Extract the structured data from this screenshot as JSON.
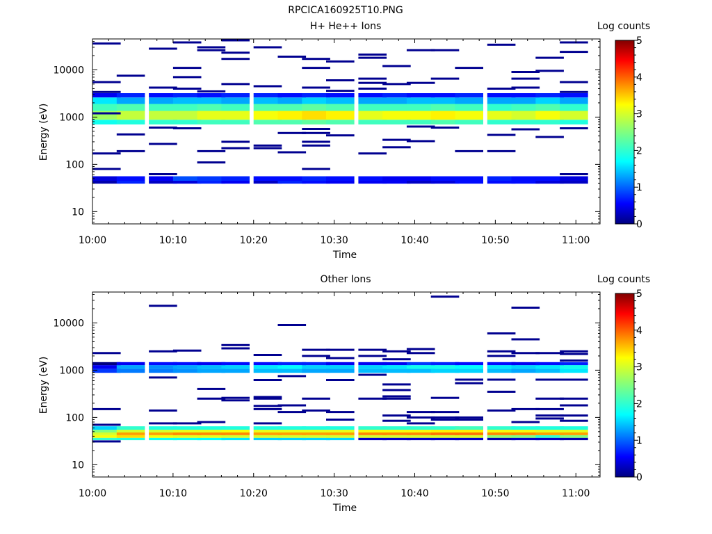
{
  "figure_title": "RPCICA160925T10.PNG",
  "chart_data": [
    {
      "type": "heatmap",
      "title": "H+ He++ Ions",
      "xlabel": "Time",
      "ylabel": "Energy (eV)",
      "x_ticks": [
        "10:00",
        "10:10",
        "10:20",
        "10:30",
        "10:40",
        "10:50",
        "11:00"
      ],
      "y_ticks": [
        "10",
        "100",
        "1000",
        "10000"
      ],
      "y_scale": "log",
      "xlim": [
        "10:00",
        "11:03"
      ],
      "ylim": [
        5.5,
        45000
      ],
      "colorbar": {
        "label": "Log counts",
        "ticks": [
          "0",
          "1",
          "2",
          "3",
          "4",
          "5"
        ],
        "range": [
          0,
          5
        ]
      },
      "time_bins": [
        "10:00",
        "10:03",
        "10:07",
        "10:10",
        "10:13",
        "10:16",
        "10:20",
        "10:23",
        "10:26",
        "10:29",
        "10:33",
        "10:36",
        "10:39",
        "10:42",
        "10:45",
        "10:49",
        "10:52",
        "10:55",
        "10:58"
      ],
      "bands": [
        {
          "e_low": 700,
          "e_high": 880,
          "values": [
            1.8,
            1.9,
            2.0,
            2.0,
            2.1,
            2.1,
            2.2,
            2.2,
            2.3,
            2.2,
            2.1,
            2.1,
            2.1,
            2.2,
            2.1,
            2.0,
            2.0,
            2.0,
            1.9
          ]
        },
        {
          "e_low": 880,
          "e_high": 1350,
          "values": [
            2.7,
            2.9,
            2.9,
            2.9,
            3.1,
            3.1,
            3.2,
            3.3,
            3.4,
            3.3,
            3.1,
            3.2,
            3.2,
            3.3,
            3.2,
            3.1,
            3.0,
            3.2,
            3.0
          ]
        },
        {
          "e_low": 1350,
          "e_high": 1900,
          "values": [
            2.1,
            2.2,
            2.1,
            2.1,
            2.2,
            2.1,
            2.2,
            2.2,
            2.3,
            2.2,
            2.1,
            2.1,
            2.1,
            2.2,
            2.1,
            2.0,
            2.1,
            2.2,
            2.0
          ]
        },
        {
          "e_low": 1900,
          "e_high": 2600,
          "values": [
            1.6,
            1.3,
            1.3,
            1.4,
            1.4,
            1.3,
            1.4,
            1.3,
            1.5,
            1.4,
            1.3,
            1.3,
            1.4,
            1.4,
            1.3,
            1.3,
            1.3,
            1.5,
            1.3
          ]
        },
        {
          "e_low": 2600,
          "e_high": 3200,
          "values": [
            0.5,
            0.7,
            0.6,
            0.7,
            0.6,
            0.7,
            0.7,
            0.6,
            0.7,
            0.6,
            0.6,
            0.7,
            0.6,
            0.6,
            0.7,
            0.6,
            0.6,
            0.7,
            0.6
          ]
        },
        {
          "e_low": 39,
          "e_high": 45,
          "values": [
            0.2,
            0.7,
            0.3,
            0.4,
            0.7,
            0.5,
            0.3,
            0.7,
            0.6,
            0.5,
            0.5,
            0.5,
            0.3,
            0.4,
            0.6,
            0.6,
            0.6,
            0.4,
            0.3
          ]
        },
        {
          "e_low": 45,
          "e_high": 56,
          "values": [
            0.4,
            0.6,
            0.5,
            0.9,
            0.8,
            0.7,
            0.6,
            0.6,
            0.7,
            0.6,
            0.6,
            0.5,
            0.5,
            0.6,
            0.6,
            0.7,
            0.6,
            0.6,
            0.4
          ]
        }
      ],
      "sparse_counts": [
        {
          "t": 0,
          "e": 36000
        },
        {
          "t": 0,
          "e": 5500
        },
        {
          "t": 0,
          "e": 3400
        },
        {
          "t": 0,
          "e": 1200
        },
        {
          "t": 0,
          "e": 170
        },
        {
          "t": 0,
          "e": 80
        },
        {
          "t": 1,
          "e": 7500
        },
        {
          "t": 1,
          "e": 430
        },
        {
          "t": 1,
          "e": 190
        },
        {
          "t": 2,
          "e": 28000
        },
        {
          "t": 2,
          "e": 4200
        },
        {
          "t": 2,
          "e": 600
        },
        {
          "t": 2,
          "e": 270
        },
        {
          "t": 2,
          "e": 62
        },
        {
          "t": 3,
          "e": 38000
        },
        {
          "t": 3,
          "e": 11000
        },
        {
          "t": 3,
          "e": 7000
        },
        {
          "t": 3,
          "e": 4000
        },
        {
          "t": 3,
          "e": 580
        },
        {
          "t": 4,
          "e": 30000
        },
        {
          "t": 4,
          "e": 26000
        },
        {
          "t": 4,
          "e": 3500
        },
        {
          "t": 4,
          "e": 190
        },
        {
          "t": 4,
          "e": 110
        },
        {
          "t": 5,
          "e": 42000
        },
        {
          "t": 5,
          "e": 23000
        },
        {
          "t": 5,
          "e": 17000
        },
        {
          "t": 5,
          "e": 5000
        },
        {
          "t": 5,
          "e": 300
        },
        {
          "t": 5,
          "e": 220
        },
        {
          "t": 6,
          "e": 30000
        },
        {
          "t": 6,
          "e": 4500
        },
        {
          "t": 6,
          "e": 250
        },
        {
          "t": 6,
          "e": 220
        },
        {
          "t": 7,
          "e": 19000
        },
        {
          "t": 7,
          "e": 460
        },
        {
          "t": 7,
          "e": 180
        },
        {
          "t": 8,
          "e": 17000
        },
        {
          "t": 8,
          "e": 11000
        },
        {
          "t": 8,
          "e": 4200
        },
        {
          "t": 8,
          "e": 560
        },
        {
          "t": 8,
          "e": 460
        },
        {
          "t": 8,
          "e": 300
        },
        {
          "t": 8,
          "e": 250
        },
        {
          "t": 8,
          "e": 80
        },
        {
          "t": 9,
          "e": 15000
        },
        {
          "t": 9,
          "e": 6000
        },
        {
          "t": 9,
          "e": 3600
        },
        {
          "t": 9,
          "e": 410
        },
        {
          "t": 10,
          "e": 21000
        },
        {
          "t": 10,
          "e": 18000
        },
        {
          "t": 10,
          "e": 6500
        },
        {
          "t": 10,
          "e": 5300
        },
        {
          "t": 10,
          "e": 4000
        },
        {
          "t": 10,
          "e": 170
        },
        {
          "t": 11,
          "e": 12000
        },
        {
          "t": 11,
          "e": 5000
        },
        {
          "t": 11,
          "e": 330
        },
        {
          "t": 11,
          "e": 230
        },
        {
          "t": 12,
          "e": 26000
        },
        {
          "t": 12,
          "e": 5300
        },
        {
          "t": 12,
          "e": 630
        },
        {
          "t": 12,
          "e": 310
        },
        {
          "t": 13,
          "e": 26000
        },
        {
          "t": 13,
          "e": 6500
        },
        {
          "t": 13,
          "e": 600
        },
        {
          "t": 14,
          "e": 11000
        },
        {
          "t": 14,
          "e": 190
        },
        {
          "t": 15,
          "e": 34000
        },
        {
          "t": 15,
          "e": 4000
        },
        {
          "t": 15,
          "e": 420
        },
        {
          "t": 15,
          "e": 190
        },
        {
          "t": 16,
          "e": 9000
        },
        {
          "t": 16,
          "e": 6500
        },
        {
          "t": 16,
          "e": 4200
        },
        {
          "t": 16,
          "e": 550
        },
        {
          "t": 17,
          "e": 18000
        },
        {
          "t": 17,
          "e": 9500
        },
        {
          "t": 17,
          "e": 380
        },
        {
          "t": 18,
          "e": 38000
        },
        {
          "t": 18,
          "e": 24000
        },
        {
          "t": 18,
          "e": 5500
        },
        {
          "t": 18,
          "e": 3400
        },
        {
          "t": 18,
          "e": 580
        },
        {
          "t": 18,
          "e": 62
        }
      ]
    },
    {
      "type": "heatmap",
      "title": "Other Ions",
      "xlabel": "Time",
      "ylabel": "Energy (eV)",
      "x_ticks": [
        "10:00",
        "10:10",
        "10:20",
        "10:30",
        "10:40",
        "10:50",
        "11:00"
      ],
      "y_ticks": [
        "10",
        "100",
        "1000",
        "10000"
      ],
      "y_scale": "log",
      "xlim": [
        "10:00",
        "11:03"
      ],
      "ylim": [
        5.5,
        45000
      ],
      "colorbar": {
        "label": "Log counts",
        "ticks": [
          "0",
          "1",
          "2",
          "3",
          "4",
          "5"
        ],
        "range": [
          0,
          5
        ]
      },
      "time_bins": [
        "10:00",
        "10:03",
        "10:07",
        "10:10",
        "10:13",
        "10:16",
        "10:20",
        "10:23",
        "10:26",
        "10:29",
        "10:33",
        "10:36",
        "10:39",
        "10:42",
        "10:45",
        "10:49",
        "10:52",
        "10:55",
        "10:58"
      ],
      "bands": [
        {
          "e_low": 880,
          "e_high": 1070,
          "values": [
            0.8,
            1.1,
            1.1,
            1.2,
            1.3,
            1.3,
            1.4,
            1.4,
            1.3,
            1.3,
            1.4,
            1.4,
            1.4,
            1.5,
            1.5,
            1.4,
            1.3,
            1.4,
            1.6
          ]
        },
        {
          "e_low": 1070,
          "e_high": 1280,
          "values": [
            0.5,
            1.3,
            1.2,
            1.3,
            1.4,
            1.5,
            1.6,
            1.7,
            1.5,
            1.5,
            1.5,
            1.6,
            1.8,
            1.8,
            1.7,
            1.6,
            1.5,
            1.6,
            1.8
          ]
        },
        {
          "e_low": 1280,
          "e_high": 1480,
          "values": [
            0.0,
            0.5,
            0.6,
            0.6,
            0.5,
            0.6,
            0.6,
            0.7,
            0.7,
            0.5,
            0.5,
            0.5,
            0.8,
            0.7,
            0.6,
            0.6,
            0.5,
            0.6,
            0.7
          ]
        },
        {
          "e_low": 33,
          "e_high": 37,
          "values": [
            2.0,
            1.9,
            1.8,
            1.8,
            1.7,
            1.6,
            1.5,
            1.5,
            1.5,
            1.5,
            0.3,
            0.3,
            0.3,
            0.3,
            0.3,
            0.2,
            0.3,
            0.3,
            0.2
          ]
        },
        {
          "e_low": 37,
          "e_high": 42,
          "values": [
            3.2,
            3.4,
            3.2,
            3.1,
            3.1,
            3.0,
            3.0,
            3.0,
            3.0,
            3.0,
            3.0,
            3.0,
            3.0,
            3.0,
            3.0,
            2.6,
            2.5,
            2.0,
            2.5
          ]
        },
        {
          "e_low": 42,
          "e_high": 48,
          "values": [
            3.0,
            3.7,
            3.7,
            3.8,
            3.8,
            3.8,
            3.7,
            3.7,
            3.7,
            3.7,
            3.8,
            3.8,
            3.8,
            3.9,
            3.9,
            3.8,
            3.8,
            3.7,
            3.7
          ]
        },
        {
          "e_low": 48,
          "e_high": 55,
          "values": [
            2.5,
            3.0,
            3.0,
            3.1,
            3.1,
            3.2,
            3.1,
            3.1,
            3.1,
            3.1,
            3.2,
            3.2,
            3.2,
            3.3,
            3.3,
            3.2,
            3.2,
            3.1,
            3.1
          ]
        },
        {
          "e_low": 55,
          "e_high": 65,
          "values": [
            1.5,
            2.0,
            1.9,
            1.9,
            1.9,
            1.9,
            1.9,
            1.9,
            1.9,
            1.9,
            2.0,
            2.0,
            2.0,
            2.0,
            2.1,
            2.0,
            1.9,
            1.9,
            1.9
          ]
        }
      ],
      "sparse_counts": [
        {
          "t": 0,
          "e": 2300
        },
        {
          "t": 0,
          "e": 150
        },
        {
          "t": 0,
          "e": 70
        },
        {
          "t": 0,
          "e": 31
        },
        {
          "t": 2,
          "e": 23000
        },
        {
          "t": 2,
          "e": 2500
        },
        {
          "t": 2,
          "e": 700
        },
        {
          "t": 2,
          "e": 140
        },
        {
          "t": 2,
          "e": 75
        },
        {
          "t": 3,
          "e": 2600
        },
        {
          "t": 3,
          "e": 75
        },
        {
          "t": 4,
          "e": 400
        },
        {
          "t": 4,
          "e": 250
        },
        {
          "t": 4,
          "e": 80
        },
        {
          "t": 5,
          "e": 3400
        },
        {
          "t": 5,
          "e": 2900
        },
        {
          "t": 5,
          "e": 260
        },
        {
          "t": 5,
          "e": 230
        },
        {
          "t": 6,
          "e": 2100
        },
        {
          "t": 6,
          "e": 620
        },
        {
          "t": 6,
          "e": 270
        },
        {
          "t": 6,
          "e": 250
        },
        {
          "t": 6,
          "e": 175
        },
        {
          "t": 6,
          "e": 150
        },
        {
          "t": 6,
          "e": 75
        },
        {
          "t": 7,
          "e": 9000
        },
        {
          "t": 7,
          "e": 750
        },
        {
          "t": 7,
          "e": 180
        },
        {
          "t": 7,
          "e": 130
        },
        {
          "t": 8,
          "e": 2700
        },
        {
          "t": 8,
          "e": 2000
        },
        {
          "t": 8,
          "e": 250
        },
        {
          "t": 8,
          "e": 140
        },
        {
          "t": 9,
          "e": 2700
        },
        {
          "t": 9,
          "e": 1800
        },
        {
          "t": 9,
          "e": 620
        },
        {
          "t": 9,
          "e": 130
        },
        {
          "t": 9,
          "e": 90
        },
        {
          "t": 10,
          "e": 2700
        },
        {
          "t": 10,
          "e": 2000
        },
        {
          "t": 10,
          "e": 800
        },
        {
          "t": 10,
          "e": 250
        },
        {
          "t": 11,
          "e": 2500
        },
        {
          "t": 11,
          "e": 1700
        },
        {
          "t": 11,
          "e": 500
        },
        {
          "t": 11,
          "e": 380
        },
        {
          "t": 11,
          "e": 280
        },
        {
          "t": 11,
          "e": 250
        },
        {
          "t": 11,
          "e": 110
        },
        {
          "t": 11,
          "e": 85
        },
        {
          "t": 12,
          "e": 2800
        },
        {
          "t": 12,
          "e": 2300
        },
        {
          "t": 12,
          "e": 130
        },
        {
          "t": 12,
          "e": 100
        },
        {
          "t": 12,
          "e": 75
        },
        {
          "t": 13,
          "e": 36000
        },
        {
          "t": 13,
          "e": 260
        },
        {
          "t": 13,
          "e": 130
        },
        {
          "t": 13,
          "e": 100
        },
        {
          "t": 13,
          "e": 90
        },
        {
          "t": 14,
          "e": 630
        },
        {
          "t": 14,
          "e": 530
        },
        {
          "t": 14,
          "e": 100
        },
        {
          "t": 14,
          "e": 90
        },
        {
          "t": 15,
          "e": 6000
        },
        {
          "t": 15,
          "e": 2500
        },
        {
          "t": 15,
          "e": 2000
        },
        {
          "t": 15,
          "e": 630
        },
        {
          "t": 15,
          "e": 350
        },
        {
          "t": 15,
          "e": 140
        },
        {
          "t": 16,
          "e": 21000
        },
        {
          "t": 16,
          "e": 4500
        },
        {
          "t": 16,
          "e": 2300
        },
        {
          "t": 16,
          "e": 150
        },
        {
          "t": 16,
          "e": 80
        },
        {
          "t": 17,
          "e": 2300
        },
        {
          "t": 17,
          "e": 630
        },
        {
          "t": 17,
          "e": 250
        },
        {
          "t": 17,
          "e": 150
        },
        {
          "t": 17,
          "e": 110
        },
        {
          "t": 17,
          "e": 95
        },
        {
          "t": 18,
          "e": 2500
        },
        {
          "t": 18,
          "e": 2200
        },
        {
          "t": 18,
          "e": 1600
        },
        {
          "t": 18,
          "e": 630
        },
        {
          "t": 18,
          "e": 250
        },
        {
          "t": 18,
          "e": 180
        },
        {
          "t": 18,
          "e": 110
        },
        {
          "t": 18,
          "e": 85
        }
      ]
    }
  ]
}
